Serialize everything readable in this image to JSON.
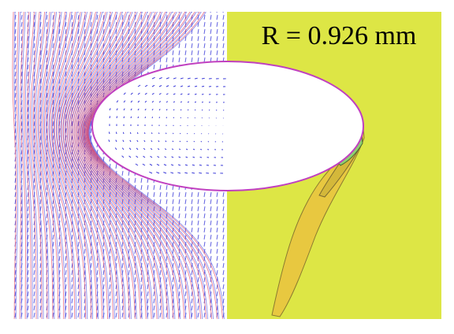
{
  "figure": {
    "label": "R = 0.926 mm"
  }
}
